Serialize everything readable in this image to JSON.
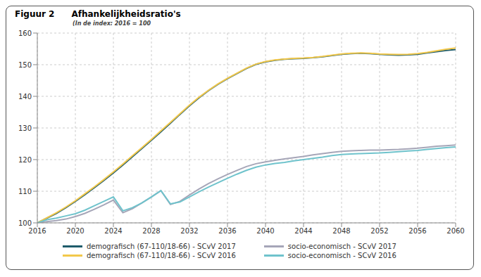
{
  "chart_data": {
    "type": "line",
    "annotations": [
      "Figuur 2"
    ],
    "title": "Afhankelijkheidsratio's",
    "subtitle": "(In de index: 2016 = 100",
    "x": [
      2016,
      2017,
      2018,
      2019,
      2020,
      2021,
      2022,
      2023,
      2024,
      2025,
      2026,
      2027,
      2028,
      2029,
      2030,
      2031,
      2032,
      2033,
      2034,
      2035,
      2036,
      2037,
      2038,
      2039,
      2040,
      2041,
      2042,
      2043,
      2044,
      2045,
      2046,
      2047,
      2048,
      2049,
      2050,
      2051,
      2052,
      2053,
      2054,
      2055,
      2056,
      2057,
      2058,
      2059,
      2060
    ],
    "xlim": [
      2016,
      2060
    ],
    "xticks": [
      2016,
      2020,
      2024,
      2028,
      2032,
      2036,
      2040,
      2044,
      2048,
      2052,
      2056,
      2060
    ],
    "ylim": [
      100,
      160
    ],
    "yticks": [
      100,
      110,
      120,
      130,
      140,
      150,
      160
    ],
    "grid": true,
    "legend": "bottom",
    "series": [
      {
        "name": "demografisch (67-110/18-66) - SCvV 2017",
        "color": "#1f5c6b",
        "values": [
          100,
          101.5,
          103,
          104.8,
          106.8,
          108.9,
          111.1,
          113.4,
          115.8,
          118.3,
          120.9,
          123.5,
          126.1,
          128.8,
          131.5,
          134.3,
          137,
          139.5,
          141.8,
          143.8,
          145.6,
          147.2,
          148.8,
          150.1,
          150.9,
          151.4,
          151.7,
          151.9,
          152,
          152.2,
          152.5,
          152.9,
          153.3,
          153.5,
          153.6,
          153.5,
          153.3,
          153.1,
          153,
          153.1,
          153.3,
          153.7,
          154.1,
          154.5,
          154.8
        ]
      },
      {
        "name": "demografisch (67-110/18-66) - SCvV 2016",
        "color": "#f2c84b",
        "values": [
          100,
          101.6,
          103.2,
          105,
          107,
          109.2,
          111.4,
          113.7,
          116.1,
          118.6,
          121.2,
          123.8,
          126.4,
          129.1,
          131.8,
          134.5,
          137.2,
          139.7,
          141.9,
          143.9,
          145.7,
          147.3,
          148.9,
          150.2,
          151,
          151.5,
          151.8,
          152,
          152.1,
          152.3,
          152.6,
          153,
          153.4,
          153.6,
          153.7,
          153.6,
          153.4,
          153.3,
          153.2,
          153.3,
          153.5,
          153.9,
          154.4,
          154.9,
          155.3
        ]
      },
      {
        "name": "socio-economisch - SCvV 2017",
        "color": "#a6a6b8",
        "values": [
          100,
          100.4,
          100.7,
          101.2,
          102,
          103,
          104.3,
          105.7,
          107.2,
          103.2,
          104.5,
          106.3,
          108.2,
          110.2,
          105.8,
          106.8,
          108.8,
          110.7,
          112.4,
          113.9,
          115.3,
          116.6,
          117.8,
          118.7,
          119.3,
          119.8,
          120.2,
          120.6,
          121,
          121.5,
          121.9,
          122.3,
          122.6,
          122.8,
          122.9,
          123,
          123,
          123.1,
          123.2,
          123.4,
          123.6,
          123.9,
          124.2,
          124.4,
          124.6
        ]
      },
      {
        "name": "socio-economisch - SCvV 2016",
        "color": "#6fc3cc",
        "values": [
          100,
          101,
          101.5,
          102.2,
          102.9,
          104,
          105.4,
          106.8,
          108.2,
          103.8,
          104.8,
          106.3,
          108.2,
          110.2,
          106,
          106.6,
          108.2,
          109.8,
          111.3,
          112.7,
          114.1,
          115.4,
          116.6,
          117.6,
          118.3,
          118.8,
          119.1,
          119.6,
          120,
          120.4,
          120.8,
          121.3,
          121.6,
          121.8,
          121.9,
          122,
          122.1,
          122.3,
          122.5,
          122.7,
          122.9,
          123.2,
          123.5,
          123.8,
          124
        ]
      }
    ]
  }
}
